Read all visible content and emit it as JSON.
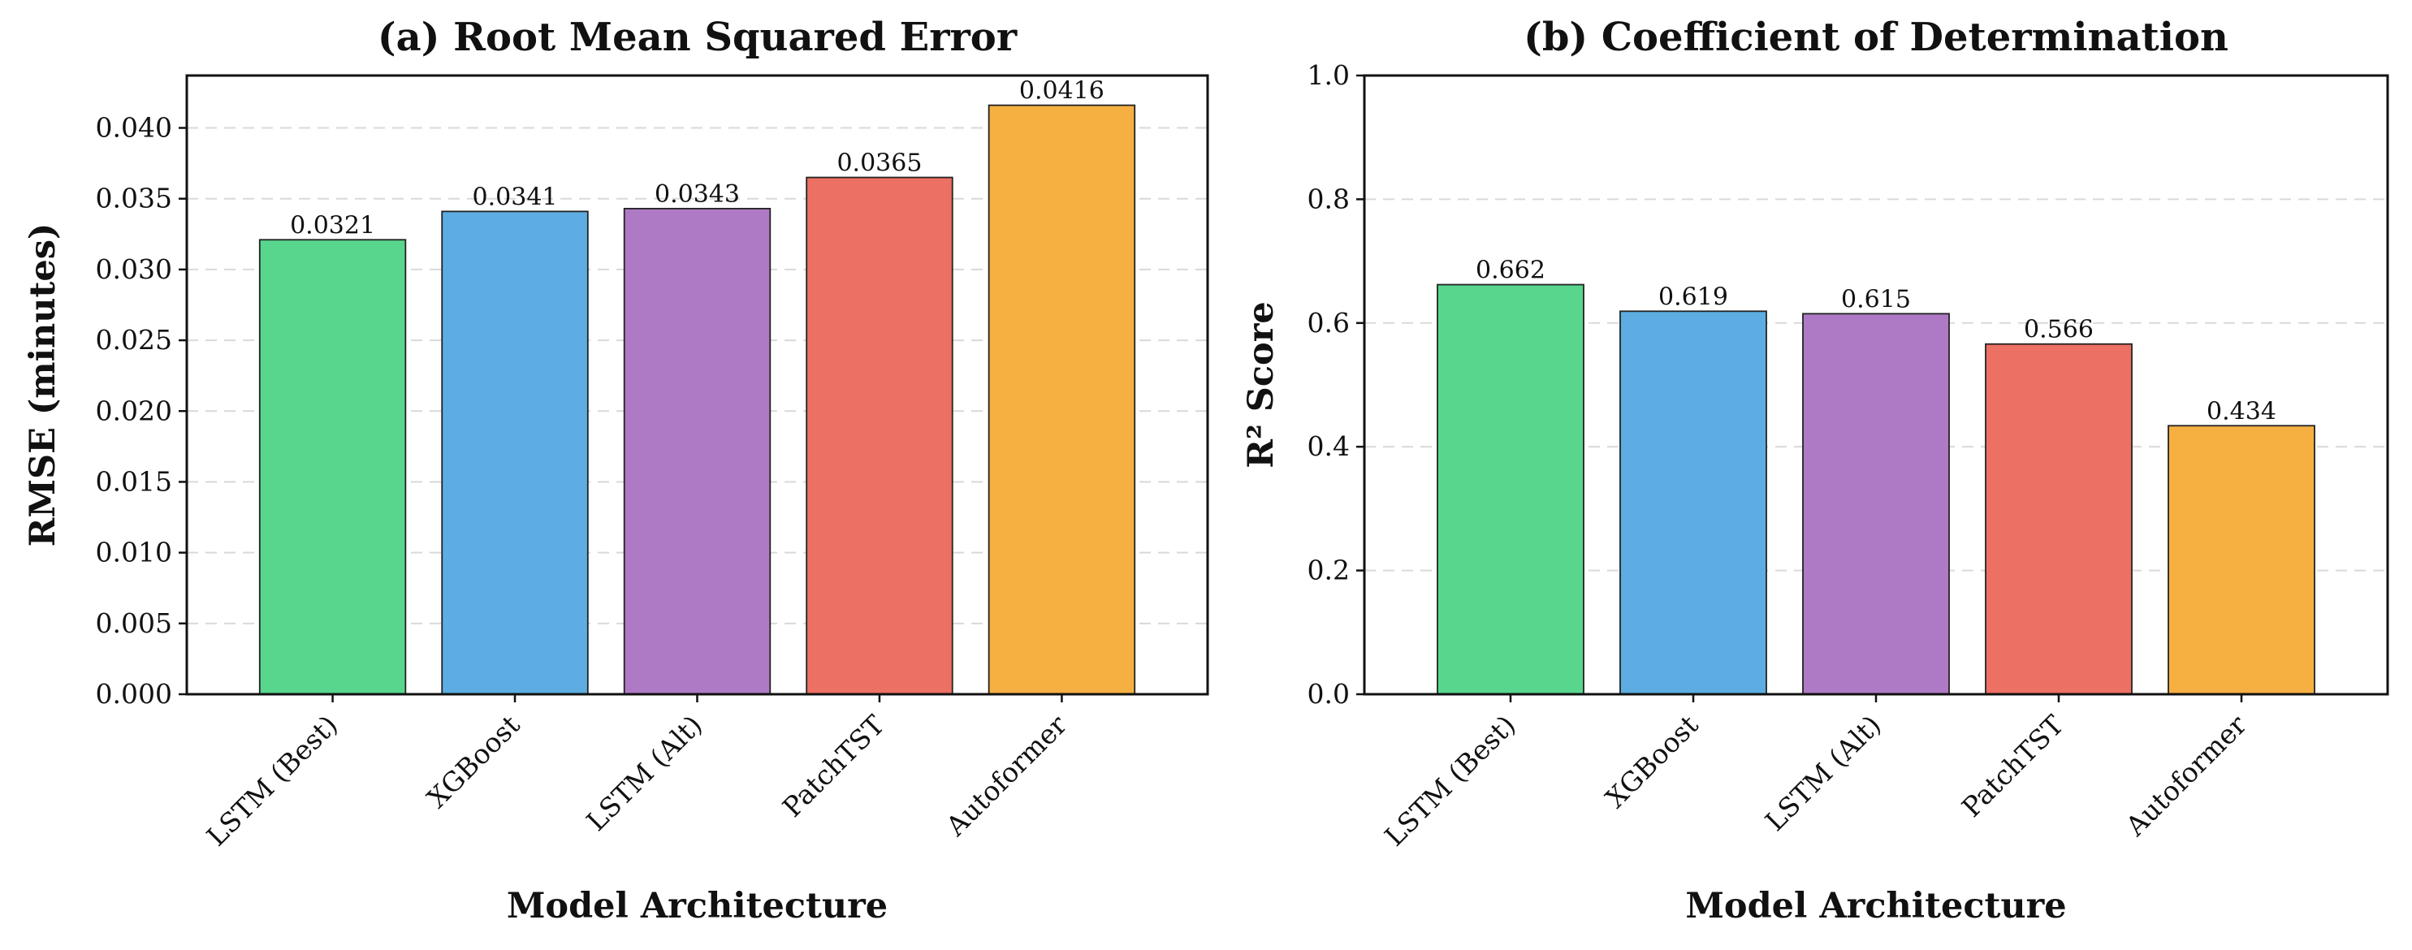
{
  "chart_data": [
    {
      "type": "bar",
      "title": "(a) Root Mean Squared Error",
      "xlabel": "Model Architecture",
      "ylabel": "RMSE (minutes)",
      "categories": [
        "LSTM (Best)",
        "XGBoost",
        "LSTM (Alt)",
        "PatchTST",
        "Autoformer"
      ],
      "values": [
        0.0321,
        0.0341,
        0.0343,
        0.0365,
        0.0416
      ],
      "value_labels": [
        "0.0321",
        "0.0341",
        "0.0343",
        "0.0365",
        "0.0416"
      ],
      "ylim": [
        0,
        0.0437
      ],
      "yticks": [
        0,
        0.005,
        0.01,
        0.015,
        0.02,
        0.025,
        0.03,
        0.035,
        0.04
      ],
      "ytick_labels": [
        "0.000",
        "0.005",
        "0.010",
        "0.015",
        "0.020",
        "0.025",
        "0.030",
        "0.035",
        "0.040"
      ],
      "grid": "y-dashed",
      "colors": [
        "#58d68d",
        "#5dade2",
        "#af7ac5",
        "#ec7063",
        "#f5b041"
      ]
    },
    {
      "type": "bar",
      "title": "(b) Coefficient of Determination",
      "xlabel": "Model Architecture",
      "ylabel": "R² Score",
      "categories": [
        "LSTM (Best)",
        "XGBoost",
        "LSTM (Alt)",
        "PatchTST",
        "Autoformer"
      ],
      "values": [
        0.662,
        0.619,
        0.615,
        0.566,
        0.434
      ],
      "value_labels": [
        "0.662",
        "0.619",
        "0.615",
        "0.566",
        "0.434"
      ],
      "ylim": [
        0,
        1.0
      ],
      "yticks": [
        0,
        0.2,
        0.4,
        0.6,
        0.8,
        1.0
      ],
      "ytick_labels": [
        "0.0",
        "0.2",
        "0.4",
        "0.6",
        "0.8",
        "1.0"
      ],
      "grid": "y-dashed",
      "colors": [
        "#58d68d",
        "#5dade2",
        "#af7ac5",
        "#ec7063",
        "#f5b041"
      ]
    }
  ]
}
